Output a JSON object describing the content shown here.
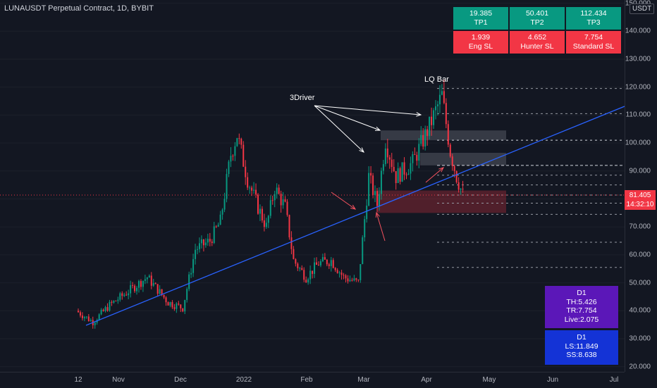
{
  "symbol": "LUNAUSDT Perpetual Contract, 1D, BYBIT",
  "currency_badge": "USDT",
  "colors": {
    "background": "#131722",
    "up": "#089981",
    "down": "#f23645",
    "trendline": "#2962ff",
    "purple_box": "#5b17b8",
    "blue_box": "#1433d6"
  },
  "current_price": {
    "value": "81.405",
    "countdown": "14:32:10"
  },
  "targets": [
    {
      "value": "19.385",
      "label": "TP1"
    },
    {
      "value": "50.401",
      "label": "TP2"
    },
    {
      "value": "112.434",
      "label": "TP3"
    }
  ],
  "stops": [
    {
      "value": "1.939",
      "label": "Eng SL"
    },
    {
      "value": "4.652",
      "label": "Hunter SL"
    },
    {
      "value": "7.754",
      "label": "Standard SL"
    }
  ],
  "d1_stats": {
    "title": "D1",
    "th": "TH:5.426",
    "tr": "TR:7.754",
    "live": "Live:2.075"
  },
  "d1_levels": {
    "title": "D1",
    "ls": "LS:11.849",
    "ss": "SS:8.638"
  },
  "annotations": {
    "driver": "3Driver",
    "lq_bar": "LQ Bar"
  },
  "price_axis": [
    "150.000",
    "140.000",
    "130.000",
    "120.000",
    "110.000",
    "100.000",
    "90.000",
    "80.000",
    "70.000",
    "60.000",
    "50.000",
    "40.000",
    "30.000",
    "20.000"
  ],
  "time_axis": [
    "12",
    "Nov",
    "Dec",
    "2022",
    "Feb",
    "Mar",
    "Apr",
    "May",
    "Jun",
    "Jul"
  ],
  "chart_data": {
    "type": "candlestick",
    "y_axis": {
      "min": 20,
      "max": 150,
      "ticks": [
        20,
        30,
        40,
        50,
        60,
        70,
        80,
        90,
        100,
        110,
        120,
        130,
        140,
        150
      ]
    },
    "x_axis_labels": [
      "12",
      "Nov",
      "Dec",
      "2022",
      "Feb",
      "Mar",
      "Apr",
      "May",
      "Jun",
      "Jul"
    ],
    "close_path": [
      {
        "date": "2021-10-12",
        "close": 40
      },
      {
        "date": "2021-10-20",
        "close": 36
      },
      {
        "date": "2021-10-28",
        "close": 42
      },
      {
        "date": "2021-11-06",
        "close": 47
      },
      {
        "date": "2021-11-15",
        "close": 52
      },
      {
        "date": "2021-11-25",
        "close": 43
      },
      {
        "date": "2021-12-02",
        "close": 41
      },
      {
        "date": "2021-12-08",
        "close": 62
      },
      {
        "date": "2021-12-15",
        "close": 65
      },
      {
        "date": "2021-12-20",
        "close": 72
      },
      {
        "date": "2021-12-25",
        "close": 96
      },
      {
        "date": "2021-12-28",
        "close": 103
      },
      {
        "date": "2022-01-02",
        "close": 87
      },
      {
        "date": "2022-01-07",
        "close": 77
      },
      {
        "date": "2022-01-11",
        "close": 70
      },
      {
        "date": "2022-01-15",
        "close": 84
      },
      {
        "date": "2022-01-20",
        "close": 77
      },
      {
        "date": "2022-01-24",
        "close": 58
      },
      {
        "date": "2022-01-30",
        "close": 52
      },
      {
        "date": "2022-02-05",
        "close": 57
      },
      {
        "date": "2022-02-11",
        "close": 58
      },
      {
        "date": "2022-02-17",
        "close": 52
      },
      {
        "date": "2022-02-24",
        "close": 50
      },
      {
        "date": "2022-03-01",
        "close": 88
      },
      {
        "date": "2022-03-05",
        "close": 78
      },
      {
        "date": "2022-03-09",
        "close": 101
      },
      {
        "date": "2022-03-14",
        "close": 88
      },
      {
        "date": "2022-03-22",
        "close": 93
      },
      {
        "date": "2022-03-30",
        "close": 106
      },
      {
        "date": "2022-04-05",
        "close": 117
      },
      {
        "date": "2022-04-09",
        "close": 97
      },
      {
        "date": "2022-04-12",
        "close": 88
      },
      {
        "date": "2022-04-15",
        "close": 81.4
      }
    ],
    "horizontal_levels": [
      119.5,
      110.5,
      101,
      92,
      88.5,
      85,
      81.4,
      78.5,
      74.5,
      64.5,
      55.5
    ],
    "zones": [
      {
        "from": 101,
        "to": 104.5,
        "color": "gray"
      },
      {
        "from": 92,
        "to": 96.5,
        "color": "gray"
      },
      {
        "from": 75,
        "to": 83,
        "color": "red"
      }
    ]
  }
}
